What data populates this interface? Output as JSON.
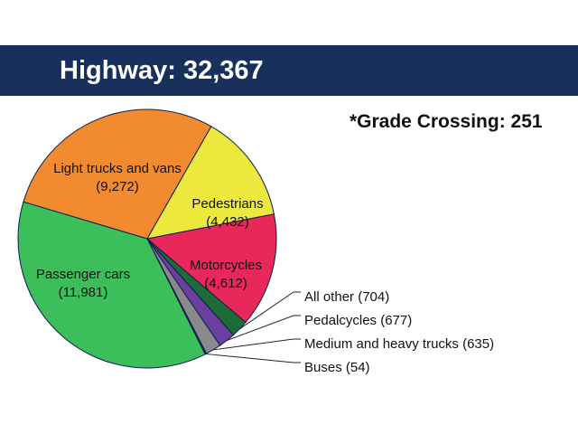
{
  "header": {
    "title": "Highway: 32,367",
    "background": "#18305c"
  },
  "subtitle": "*Grade Crossing: 251",
  "chart_data": {
    "type": "pie",
    "title": "Highway: 32,367",
    "annotation": "*Grade Crossing: 251",
    "start_angle_deg": -11,
    "direction": "clockwise",
    "slices": [
      {
        "label": "Motorcycles",
        "value_label": "(4,612)",
        "value": 4612,
        "color": "#e8285a",
        "label_style": "inside"
      },
      {
        "label": "All other",
        "value_label": "(704)",
        "value": 704,
        "color": "#1e6b3a",
        "label_style": "callout"
      },
      {
        "label": "Pedalcycles",
        "value_label": "(677)",
        "value": 677,
        "color": "#6b3fa0",
        "label_style": "callout"
      },
      {
        "label": "Medium and heavy trucks",
        "value_label": "(635)",
        "value": 635,
        "color": "#8a8a8a",
        "label_style": "callout"
      },
      {
        "label": "Buses",
        "value_label": "(54)",
        "value": 54,
        "color": "#1e3a6e",
        "label_style": "callout"
      },
      {
        "label": "Passenger cars",
        "value_label": "(11,981)",
        "value": 11981,
        "color": "#3cbf5a",
        "label_style": "inside"
      },
      {
        "label": "Light trucks and vans",
        "value_label": "(9,272)",
        "value": 9272,
        "color": "#f28a30",
        "label_style": "inside"
      },
      {
        "label": "Pedestrians",
        "value_label": "(4,432)",
        "value": 4432,
        "color": "#ece83e",
        "label_style": "inside"
      }
    ]
  }
}
